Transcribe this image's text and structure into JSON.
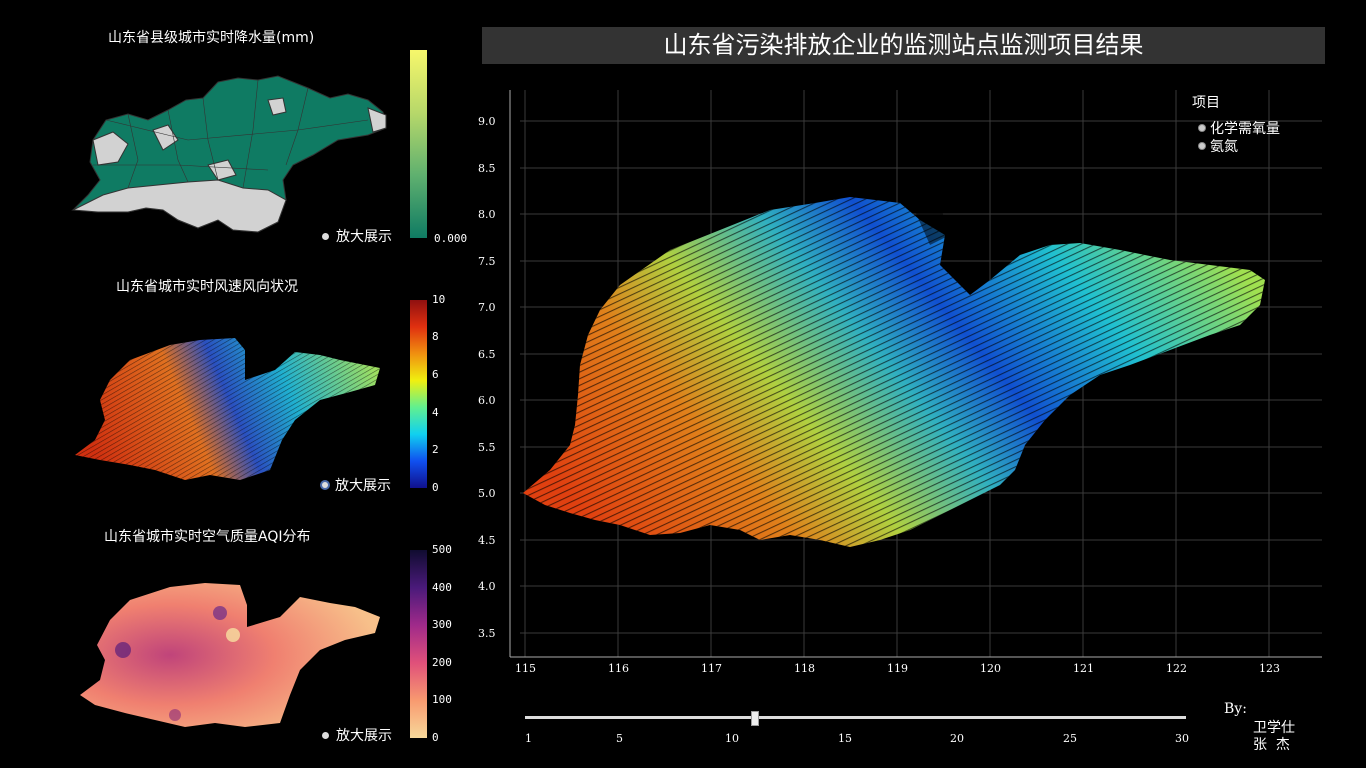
{
  "left_panels": {
    "rain": {
      "title": "山东省县级城市实时降水量(mm)",
      "zoom_label": "放大展示",
      "colorbar_min": "0.000",
      "colors": {
        "low": "#0f7b63",
        "high": "#f7f76b",
        "no_data": "#d2d2d2"
      }
    },
    "wind": {
      "title": "山东省城市实时风速风向状况",
      "zoom_label": "放大展示",
      "colorbar_ticks": [
        "10",
        "8",
        "6",
        "4",
        "2",
        "0"
      ]
    },
    "aqi": {
      "title": "山东省城市实时空气质量AQI分布",
      "zoom_label": "放大展示",
      "colorbar_ticks": [
        "500",
        "400",
        "300",
        "200",
        "100",
        "0"
      ]
    }
  },
  "main": {
    "title": "山东省污染排放企业的监测站点监测项目结果",
    "y_ticks": [
      "9.0",
      "8.5",
      "8.0",
      "7.5",
      "7.0",
      "6.5",
      "6.0",
      "5.5",
      "5.0",
      "4.5",
      "4.0",
      "3.5"
    ],
    "x_ticks": [
      "115",
      "116",
      "117",
      "118",
      "119",
      "120",
      "121",
      "122",
      "123"
    ],
    "legend": {
      "title": "项目",
      "items": [
        "化学需氧量",
        "氨氮"
      ]
    }
  },
  "slider": {
    "labels": [
      "1",
      "5",
      "10",
      "15",
      "20",
      "25",
      "30"
    ],
    "value": 11,
    "min": 1,
    "max": 30
  },
  "credit": {
    "by": "By:",
    "authors": [
      "卫学仕",
      "张  杰"
    ]
  }
}
